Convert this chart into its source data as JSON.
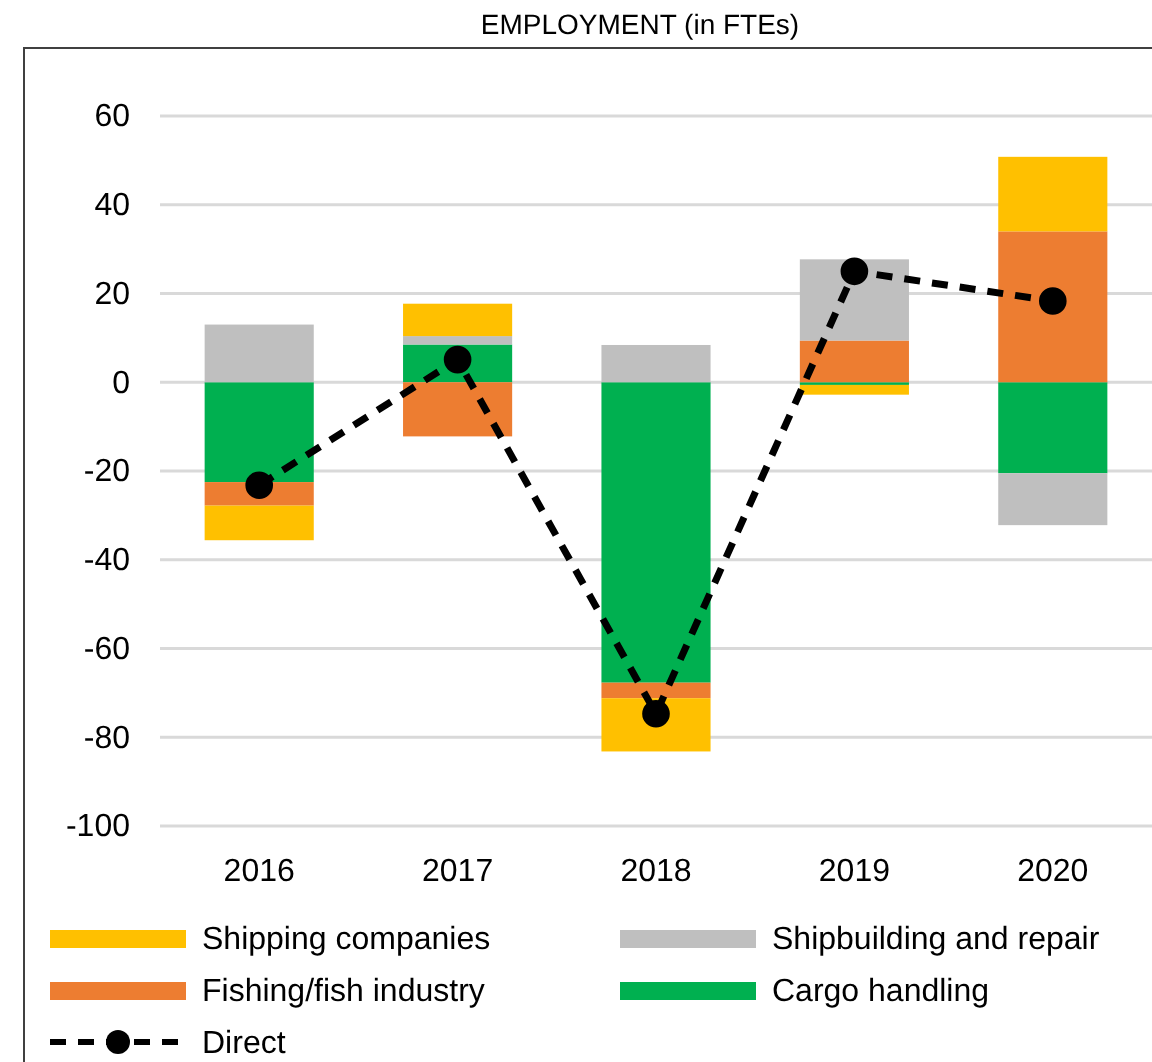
{
  "chart_data": {
    "type": "bar",
    "title": "EMPLOYMENT (in FTEs)",
    "categories": [
      "2016",
      "2017",
      "2018",
      "2019",
      "2020"
    ],
    "stacked": true,
    "series": [
      {
        "name": "Cargo handling",
        "color": "#00b050",
        "values": [
          -22.5,
          8.5,
          -67.7,
          -0.6,
          -20.5
        ]
      },
      {
        "name": "Fishing/fish industry",
        "color": "#ed7d31",
        "values": [
          -5.3,
          -12.2,
          -3.5,
          9.4,
          34
        ]
      },
      {
        "name": "Shipbuilding and repair",
        "color": "#bfbfbf",
        "values": [
          13,
          1.9,
          8.4,
          18.3,
          -11.7
        ]
      },
      {
        "name": "Shipping companies",
        "color": "#ffc000",
        "values": [
          -7.8,
          7.3,
          -12,
          -2.2,
          16.8
        ]
      },
      {
        "name": "Direct",
        "type": "line",
        "color": "#000000",
        "values": [
          -23.2,
          5.1,
          -74.7,
          25,
          18.3
        ],
        "marker": "circle",
        "line_style": "dashed"
      }
    ],
    "ylim": [
      -100,
      60
    ],
    "yticks": [
      -100,
      -80,
      -60,
      -40,
      -20,
      0,
      20,
      40,
      60
    ],
    "grid": "y",
    "legend": "bottom"
  }
}
